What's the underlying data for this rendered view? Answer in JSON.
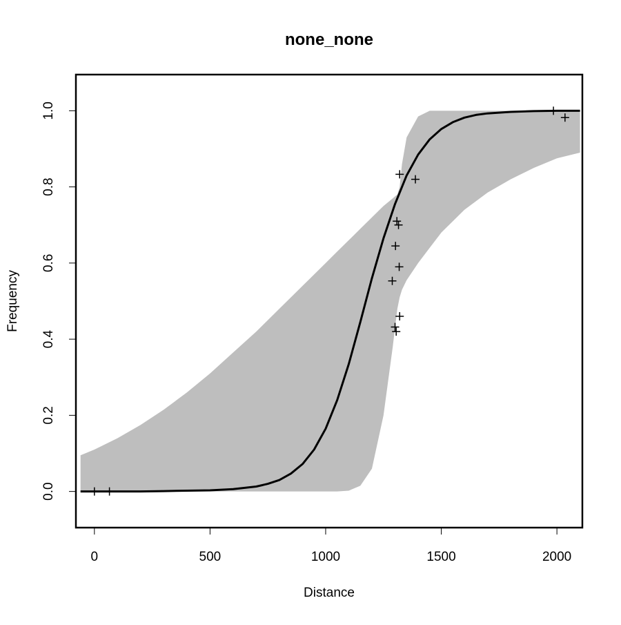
{
  "chart_data": {
    "type": "line",
    "title": "none_none",
    "xlabel": "Distance",
    "ylabel": "Frequency",
    "xlim": [
      -80,
      2110
    ],
    "ylim": [
      -0.095,
      1.095
    ],
    "x_ticks": [
      0,
      500,
      1000,
      1500,
      2000
    ],
    "x_tick_labels": [
      "0",
      "500",
      "1000",
      "1500",
      "2000"
    ],
    "y_ticks": [
      0.0,
      0.2,
      0.4,
      0.6,
      0.8,
      1.0
    ],
    "y_tick_labels": [
      "0.0",
      "0.2",
      "0.4",
      "0.6",
      "0.8",
      "1.0"
    ],
    "grid": false,
    "colors": {
      "band": "#bebebe",
      "line": "#000000",
      "points": "#000000"
    },
    "fit_curve": {
      "x": [
        -60,
        0,
        100,
        200,
        300,
        400,
        500,
        600,
        700,
        750,
        800,
        850,
        900,
        950,
        1000,
        1050,
        1100,
        1150,
        1200,
        1250,
        1300,
        1350,
        1400,
        1450,
        1500,
        1550,
        1600,
        1650,
        1700,
        1800,
        1900,
        2000,
        2100
      ],
      "y": [
        0.0,
        0.0,
        0.0,
        0.0,
        0.001,
        0.002,
        0.003,
        0.006,
        0.013,
        0.02,
        0.03,
        0.047,
        0.072,
        0.11,
        0.165,
        0.24,
        0.335,
        0.445,
        0.56,
        0.665,
        0.755,
        0.83,
        0.885,
        0.925,
        0.952,
        0.97,
        0.982,
        0.989,
        0.993,
        0.997,
        0.999,
        1.0,
        1.0
      ]
    },
    "confidence_band": {
      "x": [
        -60,
        0,
        100,
        200,
        300,
        400,
        500,
        600,
        700,
        800,
        900,
        1000,
        1050,
        1100,
        1150,
        1200,
        1250,
        1270,
        1290,
        1300,
        1310,
        1320,
        1330,
        1350,
        1400,
        1450,
        1500,
        1600,
        1700,
        1800,
        1900,
        2000,
        2100
      ],
      "upper": [
        0.095,
        0.11,
        0.14,
        0.175,
        0.215,
        0.26,
        0.31,
        0.365,
        0.42,
        0.48,
        0.54,
        0.6,
        0.63,
        0.66,
        0.69,
        0.72,
        0.75,
        0.76,
        0.77,
        0.775,
        0.78,
        0.8,
        0.86,
        0.93,
        0.985,
        1.0,
        1.0,
        1.0,
        1.0,
        1.0,
        1.0,
        1.0,
        1.0
      ],
      "lower": [
        0.0,
        0.0,
        0.0,
        0.0,
        0.0,
        0.0,
        0.0,
        0.0,
        0.0,
        0.0,
        0.0,
        0.0,
        0.0,
        0.002,
        0.015,
        0.06,
        0.2,
        0.29,
        0.38,
        0.43,
        0.48,
        0.51,
        0.53,
        0.555,
        0.6,
        0.64,
        0.68,
        0.74,
        0.785,
        0.82,
        0.85,
        0.875,
        0.89
      ]
    },
    "points": [
      {
        "x": 0,
        "y": 0.0
      },
      {
        "x": 65,
        "y": 0.0
      },
      {
        "x": 1288,
        "y": 0.553
      },
      {
        "x": 1300,
        "y": 0.432
      },
      {
        "x": 1305,
        "y": 0.42
      },
      {
        "x": 1302,
        "y": 0.645
      },
      {
        "x": 1308,
        "y": 0.71
      },
      {
        "x": 1315,
        "y": 0.7
      },
      {
        "x": 1318,
        "y": 0.59
      },
      {
        "x": 1320,
        "y": 0.46
      },
      {
        "x": 1320,
        "y": 0.833
      },
      {
        "x": 1388,
        "y": 0.82
      },
      {
        "x": 1985,
        "y": 1.0
      },
      {
        "x": 2035,
        "y": 0.982
      }
    ]
  }
}
